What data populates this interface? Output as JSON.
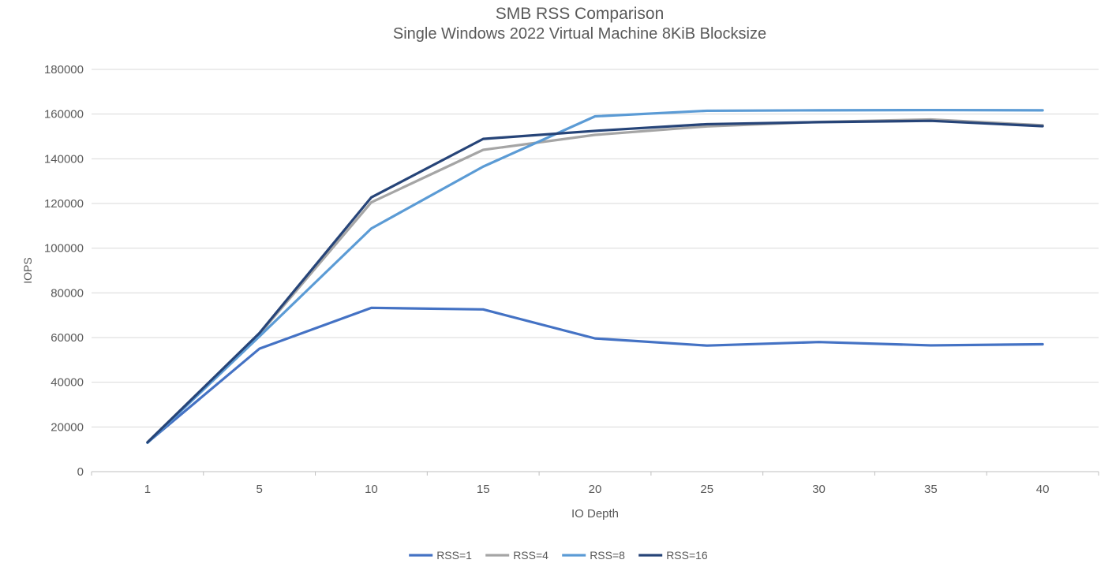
{
  "chart_data": {
    "type": "line",
    "title": "SMB RSS Comparison",
    "subtitle": "Single Windows 2022 Virtual Machine 8KiB Blocksize",
    "xlabel": "IO Depth",
    "ylabel": "IOPS",
    "categories": [
      1,
      5,
      10,
      15,
      20,
      25,
      30,
      35,
      40
    ],
    "series": [
      {
        "name": "RSS=1",
        "color": "#4472C4",
        "values": [
          13000,
          55000,
          73300,
          72600,
          59600,
          56400,
          58000,
          56500,
          57000
        ]
      },
      {
        "name": "RSS=4",
        "color": "#A5A5A5",
        "values": [
          13200,
          61500,
          120500,
          144000,
          150700,
          154500,
          156500,
          157600,
          155000
        ]
      },
      {
        "name": "RSS=8",
        "color": "#5B9BD5",
        "values": [
          12900,
          60500,
          108800,
          136500,
          159000,
          161500,
          161700,
          161800,
          161700
        ]
      },
      {
        "name": "RSS=16",
        "color": "#264478",
        "values": [
          13100,
          62000,
          122700,
          148900,
          152500,
          155500,
          156400,
          157000,
          154600
        ]
      }
    ],
    "ylim": [
      0,
      180000
    ],
    "ytick_step": 20000,
    "grid": true,
    "legend_position": "bottom"
  },
  "styles": {
    "text_color": "#595959",
    "grid_color": "#D9D9D9",
    "axis_color": "#BFBFBF"
  }
}
